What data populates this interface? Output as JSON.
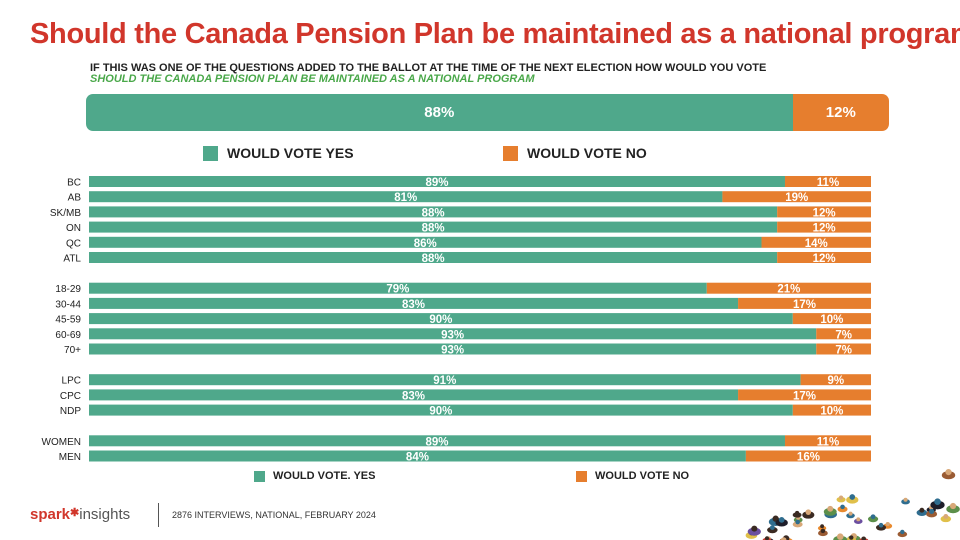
{
  "title": "Should the Canada Pension Plan be maintained as a national program",
  "question_line1": "IF THIS WAS ONE OF THE QUESTIONS ADDED TO THE BALLOT AT THE TIME OF THE NEXT ELECTION HOW WOULD YOU VOTE",
  "question_line2": "SHOULD THE CANADA PENSION PLAN BE MAINTAINED AS A NATIONAL PROGRAM",
  "colors": {
    "yes": "#4fa88b",
    "no": "#e67e2e",
    "title": "#d1362b",
    "subtitle": "#4aa84a"
  },
  "overall": {
    "yes": 88,
    "no": 12,
    "yes_label": "88%",
    "no_label": "12%"
  },
  "legend_top": {
    "yes": "WOULD VOTE YES",
    "no": "WOULD VOTE NO"
  },
  "legend_bottom": {
    "yes": "WOULD VOTE. YES",
    "no": "WOULD VOTE NO"
  },
  "chart_data": {
    "type": "bar",
    "orientation": "horizontal",
    "stacked": true,
    "percent": true,
    "categories": [
      "BC",
      "AB",
      "SK/MB",
      "ON",
      "QC",
      "ATL",
      "18-29",
      "30-44",
      "45-59",
      "60-69",
      "70+",
      "LPC",
      "CPC",
      "NDP",
      "WOMEN",
      "MEN"
    ],
    "groups": [
      [
        "BC",
        "AB",
        "SK/MB",
        "ON",
        "QC",
        "ATL"
      ],
      [
        "18-29",
        "30-44",
        "45-59",
        "60-69",
        "70+"
      ],
      [
        "LPC",
        "CPC",
        "NDP"
      ],
      [
        "WOMEN",
        "MEN"
      ]
    ],
    "series": [
      {
        "name": "WOULD VOTE YES",
        "values": [
          89,
          81,
          88,
          88,
          86,
          88,
          79,
          83,
          90,
          93,
          93,
          91,
          83,
          90,
          89,
          84
        ]
      },
      {
        "name": "WOULD VOTE NO",
        "values": [
          11,
          19,
          12,
          12,
          14,
          12,
          21,
          17,
          10,
          7,
          7,
          9,
          17,
          10,
          11,
          16
        ]
      }
    ],
    "xlim": [
      0,
      100
    ]
  },
  "footer": {
    "brand_a": "spark",
    "brand_b": "insights",
    "note": "2876 INTERVIEWS, NATIONAL, FEBRUARY 2024"
  }
}
